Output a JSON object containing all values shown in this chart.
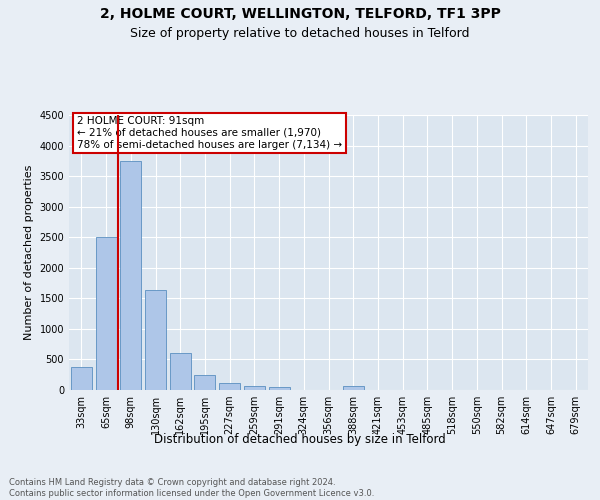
{
  "title1": "2, HOLME COURT, WELLINGTON, TELFORD, TF1 3PP",
  "title2": "Size of property relative to detached houses in Telford",
  "xlabel": "Distribution of detached houses by size in Telford",
  "ylabel": "Number of detached properties",
  "categories": [
    "33sqm",
    "65sqm",
    "98sqm",
    "130sqm",
    "162sqm",
    "195sqm",
    "227sqm",
    "259sqm",
    "291sqm",
    "324sqm",
    "356sqm",
    "388sqm",
    "421sqm",
    "453sqm",
    "485sqm",
    "518sqm",
    "550sqm",
    "582sqm",
    "614sqm",
    "647sqm",
    "679sqm"
  ],
  "values": [
    380,
    2500,
    3750,
    1640,
    600,
    240,
    110,
    70,
    55,
    0,
    0,
    70,
    0,
    0,
    0,
    0,
    0,
    0,
    0,
    0,
    0
  ],
  "bar_color": "#aec6e8",
  "bar_edge_color": "#5a8fc0",
  "red_line_x": 1.5,
  "annotation_text_line1": "2 HOLME COURT: 91sqm",
  "annotation_text_line2": "← 21% of detached houses are smaller (1,970)",
  "annotation_text_line3": "78% of semi-detached houses are larger (7,134) →",
  "vline_color": "#cc0000",
  "annotation_box_color": "#cc0000",
  "ylim": [
    0,
    4500
  ],
  "yticks": [
    0,
    500,
    1000,
    1500,
    2000,
    2500,
    3000,
    3500,
    4000,
    4500
  ],
  "bg_color": "#e8eef5",
  "plot_bg_color": "#dce6f0",
  "grid_color": "#ffffff",
  "footer_text": "Contains HM Land Registry data © Crown copyright and database right 2024.\nContains public sector information licensed under the Open Government Licence v3.0.",
  "title1_fontsize": 10,
  "title2_fontsize": 9,
  "xlabel_fontsize": 8.5,
  "ylabel_fontsize": 8,
  "tick_fontsize": 7,
  "footer_fontsize": 6,
  "ann_fontsize": 7.5
}
